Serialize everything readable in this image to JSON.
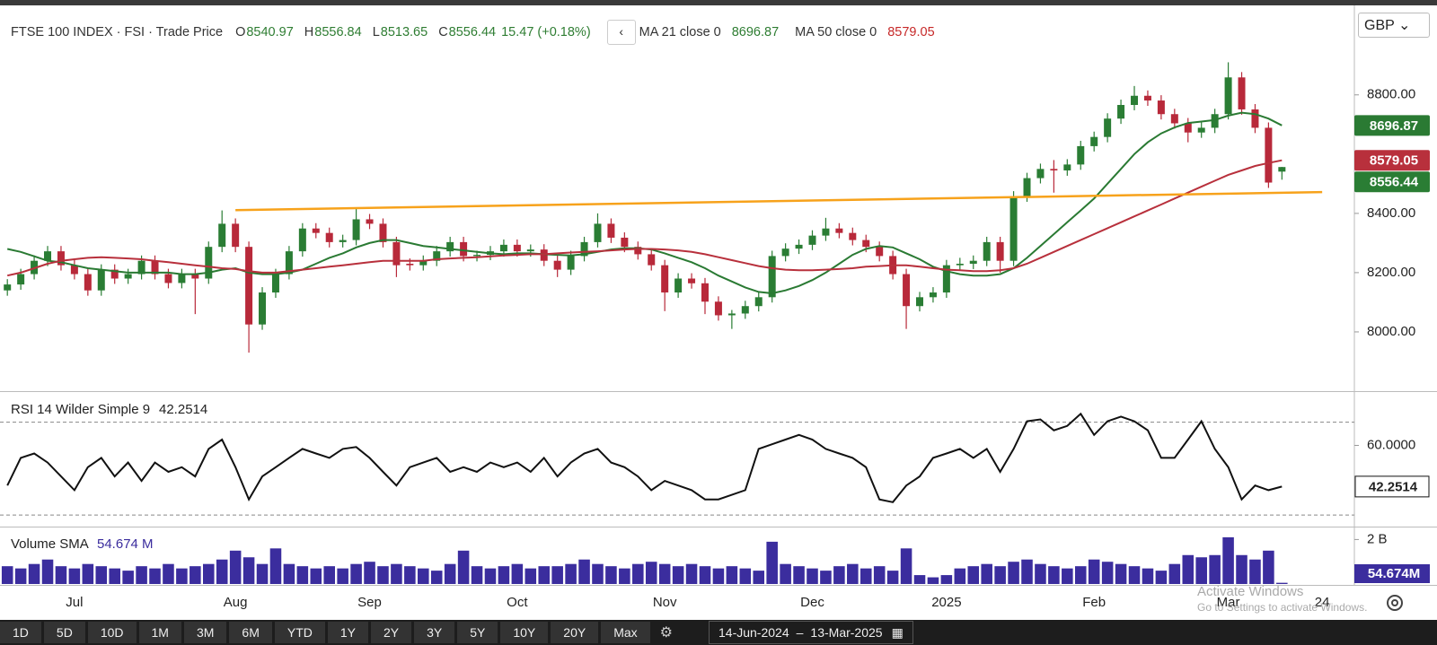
{
  "currency": "GBP",
  "toolbar": {
    "ranges": [
      "1D",
      "5D",
      "10D",
      "1M",
      "3M",
      "6M",
      "YTD",
      "1Y",
      "2Y",
      "3Y",
      "5Y",
      "10Y",
      "20Y",
      "Max"
    ],
    "from": "14-Jun-2024",
    "to": "13-Mar-2025"
  },
  "watermark": {
    "title": "Activate Windows",
    "text": "Go to Settings to activate Windows."
  },
  "chart_data": [
    {
      "type": "candlestick",
      "title": "FTSE 100 INDEX · FSI",
      "subtitle": "· Trade Price",
      "ohlc_labels": [
        "O",
        "H",
        "L",
        "C"
      ],
      "change": "15.47 (+0.18%)",
      "up_color": "#2a7d34",
      "down_color": "#b8293a",
      "ohlc": [
        [
          8140,
          8178,
          8122,
          8160
        ],
        [
          8160,
          8213,
          8142,
          8195
        ],
        [
          8195,
          8258,
          8177,
          8240
        ],
        [
          8240,
          8290,
          8222,
          8272
        ],
        [
          8272,
          8290,
          8207,
          8225
        ],
        [
          8225,
          8243,
          8177,
          8195
        ],
        [
          8195,
          8213,
          8122,
          8140
        ],
        [
          8140,
          8228,
          8122,
          8210
        ],
        [
          8210,
          8228,
          8162,
          8180
        ],
        [
          8180,
          8213,
          8162,
          8195
        ],
        [
          8195,
          8258,
          8177,
          8240
        ],
        [
          8240,
          8258,
          8177,
          8195
        ],
        [
          8195,
          8213,
          8147,
          8165
        ],
        [
          8165,
          8213,
          8147,
          8195
        ],
        [
          8195,
          8213,
          8060,
          8180
        ],
        [
          8180,
          8305,
          8162,
          8287
        ],
        [
          8287,
          8410,
          8269,
          8365
        ],
        [
          8365,
          8383,
          8269,
          8287
        ],
        [
          8287,
          8305,
          7930,
          8025
        ],
        [
          8025,
          8151,
          8007,
          8133
        ],
        [
          8133,
          8213,
          8115,
          8195
        ],
        [
          8195,
          8290,
          8177,
          8272
        ],
        [
          8272,
          8367,
          8254,
          8349
        ],
        [
          8349,
          8367,
          8316,
          8334
        ],
        [
          8334,
          8352,
          8285,
          8303
        ],
        [
          8303,
          8328,
          8285,
          8310
        ],
        [
          8310,
          8415,
          8292,
          8380
        ],
        [
          8380,
          8398,
          8347,
          8365
        ],
        [
          8365,
          8383,
          8285,
          8303
        ],
        [
          8303,
          8321,
          8185,
          8225
        ],
        [
          8230,
          8248,
          8207,
          8225
        ],
        [
          8225,
          8258,
          8207,
          8240
        ],
        [
          8240,
          8290,
          8222,
          8272
        ],
        [
          8272,
          8321,
          8254,
          8303
        ],
        [
          8303,
          8321,
          8238,
          8256
        ],
        [
          8256,
          8274,
          8238,
          8260
        ],
        [
          8260,
          8290,
          8242,
          8272
        ],
        [
          8272,
          8312,
          8254,
          8294
        ],
        [
          8294,
          8312,
          8254,
          8272
        ],
        [
          8272,
          8295,
          8254,
          8278
        ],
        [
          8278,
          8296,
          8222,
          8240
        ],
        [
          8240,
          8258,
          8185,
          8210
        ],
        [
          8210,
          8274,
          8192,
          8256
        ],
        [
          8256,
          8321,
          8238,
          8303
        ],
        [
          8303,
          8400,
          8285,
          8365
        ],
        [
          8365,
          8383,
          8300,
          8318
        ],
        [
          8318,
          8336,
          8269,
          8287
        ],
        [
          8287,
          8305,
          8244,
          8262
        ],
        [
          8262,
          8280,
          8207,
          8225
        ],
        [
          8225,
          8243,
          8070,
          8133
        ],
        [
          8133,
          8198,
          8115,
          8180
        ],
        [
          8180,
          8198,
          8146,
          8164
        ],
        [
          8164,
          8182,
          8060,
          8102
        ],
        [
          8102,
          8120,
          8038,
          8056
        ],
        [
          8056,
          8074,
          8010,
          8062
        ],
        [
          8062,
          8105,
          8044,
          8087
        ],
        [
          8087,
          8135,
          8069,
          8117
        ],
        [
          8117,
          8274,
          8099,
          8256
        ],
        [
          8256,
          8299,
          8238,
          8281
        ],
        [
          8281,
          8312,
          8263,
          8294
        ],
        [
          8294,
          8343,
          8276,
          8325
        ],
        [
          8325,
          8385,
          8307,
          8349
        ],
        [
          8349,
          8367,
          8316,
          8334
        ],
        [
          8334,
          8352,
          8292,
          8310
        ],
        [
          8310,
          8328,
          8269,
          8287
        ],
        [
          8287,
          8305,
          8238,
          8256
        ],
        [
          8256,
          8274,
          8177,
          8195
        ],
        [
          8195,
          8213,
          8010,
          8087
        ],
        [
          8087,
          8135,
          8069,
          8117
        ],
        [
          8117,
          8151,
          8099,
          8133
        ],
        [
          8133,
          8243,
          8115,
          8225
        ],
        [
          8225,
          8250,
          8207,
          8230
        ],
        [
          8230,
          8258,
          8212,
          8240
        ],
        [
          8240,
          8321,
          8222,
          8303
        ],
        [
          8303,
          8321,
          8200,
          8240
        ],
        [
          8240,
          8475,
          8222,
          8457
        ],
        [
          8457,
          8537,
          8439,
          8519
        ],
        [
          8519,
          8568,
          8501,
          8550
        ],
        [
          8550,
          8580,
          8470,
          8545
        ],
        [
          8545,
          8583,
          8527,
          8565
        ],
        [
          8565,
          8645,
          8547,
          8627
        ],
        [
          8627,
          8676,
          8609,
          8658
        ],
        [
          8658,
          8738,
          8640,
          8720
        ],
        [
          8720,
          8784,
          8702,
          8766
        ],
        [
          8766,
          8830,
          8748,
          8797
        ],
        [
          8797,
          8815,
          8763,
          8781
        ],
        [
          8781,
          8799,
          8717,
          8735
        ],
        [
          8735,
          8753,
          8686,
          8704
        ],
        [
          8704,
          8722,
          8640,
          8673
        ],
        [
          8673,
          8707,
          8655,
          8689
        ],
        [
          8689,
          8753,
          8671,
          8735
        ],
        [
          8735,
          8910,
          8717,
          8859
        ],
        [
          8859,
          8877,
          8733,
          8751
        ],
        [
          8751,
          8769,
          8671,
          8689
        ],
        [
          8689,
          8707,
          8486,
          8504
        ],
        [
          8540.97,
          8556.84,
          8513.65,
          8556.44
        ],
        null,
        null,
        null,
        null,
        null
      ],
      "series": [
        {
          "name": "MA 21 close 0",
          "color": "#2a7a33",
          "values": [
            8280,
            8270,
            8255,
            8240,
            8235,
            8225,
            8215,
            8210,
            8205,
            8200,
            8200,
            8200,
            8200,
            8195,
            8195,
            8200,
            8210,
            8215,
            8200,
            8195,
            8195,
            8200,
            8210,
            8230,
            8250,
            8265,
            8285,
            8300,
            8310,
            8310,
            8300,
            8290,
            8285,
            8280,
            8275,
            8270,
            8265,
            8262,
            8265,
            8265,
            8262,
            8260,
            8258,
            8262,
            8270,
            8278,
            8282,
            8282,
            8278,
            8265,
            8250,
            8235,
            8215,
            8190,
            8170,
            8150,
            8135,
            8130,
            8140,
            8155,
            8175,
            8200,
            8230,
            8260,
            8280,
            8290,
            8285,
            8265,
            8245,
            8220,
            8205,
            8195,
            8190,
            8190,
            8195,
            8215,
            8250,
            8290,
            8330,
            8370,
            8410,
            8450,
            8500,
            8550,
            8600,
            8640,
            8670,
            8690,
            8705,
            8710,
            8715,
            8730,
            8740,
            8735,
            8720,
            8696.87,
            null,
            null,
            null,
            null,
            null
          ]
        },
        {
          "name": "MA 50 close 0",
          "color": "#b8303c",
          "values": [
            8190,
            8200,
            8215,
            8230,
            8240,
            8245,
            8250,
            8252,
            8250,
            8248,
            8245,
            8240,
            8235,
            8230,
            8225,
            8220,
            8215,
            8212,
            8205,
            8200,
            8200,
            8205,
            8210,
            8215,
            8220,
            8225,
            8230,
            8235,
            8240,
            8240,
            8240,
            8240,
            8245,
            8248,
            8250,
            8252,
            8255,
            8258,
            8260,
            8262,
            8262,
            8265,
            8268,
            8270,
            8272,
            8275,
            8278,
            8280,
            8280,
            8278,
            8275,
            8270,
            8262,
            8252,
            8242,
            8232,
            8222,
            8215,
            8210,
            8208,
            8208,
            8210,
            8212,
            8215,
            8220,
            8222,
            8225,
            8225,
            8220,
            8215,
            8210,
            8208,
            8205,
            8205,
            8208,
            8215,
            8230,
            8250,
            8270,
            8290,
            8310,
            8330,
            8350,
            8370,
            8390,
            8410,
            8430,
            8450,
            8470,
            8490,
            8510,
            8530,
            8545,
            8560,
            8570,
            8579.05,
            null,
            null,
            null,
            null,
            null
          ]
        }
      ],
      "trendline": {
        "color": "#f7a21b",
        "x": [
          17,
          98
        ],
        "values": [
          8411,
          8472
        ]
      },
      "ylim": [
        7800,
        9090
      ],
      "yticks": [
        {
          "value": 8000,
          "label": "8000.00"
        },
        {
          "value": 8200,
          "label": "8200.00"
        },
        {
          "value": 8400,
          "label": "8400.00"
        },
        {
          "value": 8800,
          "label": "8800.00"
        }
      ]
    },
    {
      "type": "line",
      "title": "RSI 14 Wilder Simple 9",
      "series": [
        {
          "name": "RSI",
          "color": "#111111",
          "values": [
            42.7,
            54.6,
            56.5,
            52.6,
            46.6,
            40.7,
            50.6,
            54.6,
            46.6,
            52.6,
            44.7,
            52.6,
            48.6,
            50.6,
            46.6,
            58.5,
            62.5,
            50.6,
            36.7,
            46.6,
            50.6,
            54.6,
            58.5,
            56.5,
            54.6,
            58.5,
            59.3,
            54.6,
            48.6,
            42.7,
            50.6,
            52.6,
            54.6,
            48.6,
            50.6,
            48.6,
            52.6,
            50.6,
            52.6,
            48.6,
            54.6,
            46.6,
            52.6,
            56.5,
            58.5,
            52.6,
            50.6,
            46.6,
            40.7,
            44.7,
            42.7,
            40.7,
            36.7,
            36.7,
            38.7,
            40.7,
            58.5,
            60.5,
            62.5,
            64.5,
            62.5,
            58.5,
            56.5,
            54.6,
            50.6,
            36.7,
            35.5,
            42.7,
            46.6,
            54.6,
            56.5,
            58.5,
            54.6,
            58.5,
            48.6,
            58.5,
            70.4,
            71.2,
            66.5,
            68.4,
            73.6,
            64.5,
            70.4,
            72.4,
            70.4,
            66.5,
            54.6,
            54.6,
            62.5,
            70.4,
            58.5,
            50.6,
            36.7,
            42.7,
            40.7,
            42.2514,
            null,
            null,
            null,
            null,
            null
          ]
        }
      ],
      "bands": [
        30,
        70
      ],
      "ylim": [
        25,
        83
      ],
      "yticks": [
        {
          "value": 60,
          "label": "60.0000"
        }
      ]
    },
    {
      "type": "bar",
      "title": "Volume SMA",
      "sma_label": "54.674 M",
      "badge": "54.674M",
      "color": "#3b2d9e",
      "categories": [
        null,
        null,
        null,
        null,
        null,
        "Jul",
        null,
        null,
        null,
        null,
        null,
        null,
        null,
        null,
        null,
        null,
        null,
        "Aug",
        null,
        null,
        null,
        null,
        null,
        null,
        null,
        null,
        null,
        "Sep",
        null,
        null,
        null,
        null,
        null,
        null,
        null,
        null,
        null,
        null,
        "Oct",
        null,
        null,
        null,
        null,
        null,
        null,
        null,
        null,
        null,
        null,
        "Nov",
        null,
        null,
        null,
        null,
        null,
        null,
        null,
        null,
        null,
        null,
        "Dec",
        null,
        null,
        null,
        null,
        null,
        null,
        null,
        null,
        null,
        "2025",
        null,
        null,
        null,
        null,
        null,
        null,
        null,
        null,
        null,
        null,
        "Feb",
        null,
        null,
        null,
        null,
        null,
        null,
        null,
        null,
        null,
        "Mar",
        null,
        null,
        null,
        null,
        null,
        null,
        "24",
        null,
        null
      ],
      "values": [
        0.8,
        0.7,
        0.9,
        1.1,
        0.8,
        0.7,
        0.9,
        0.8,
        0.7,
        0.6,
        0.8,
        0.7,
        0.9,
        0.7,
        0.8,
        0.9,
        1.1,
        1.5,
        1.2,
        0.9,
        1.6,
        0.9,
        0.8,
        0.7,
        0.8,
        0.7,
        0.9,
        1.0,
        0.8,
        0.9,
        0.8,
        0.7,
        0.6,
        0.9,
        1.5,
        0.8,
        0.7,
        0.8,
        0.9,
        0.7,
        0.8,
        0.8,
        0.9,
        1.1,
        0.9,
        0.8,
        0.7,
        0.9,
        1.0,
        0.9,
        0.8,
        0.9,
        0.8,
        0.7,
        0.8,
        0.7,
        0.6,
        1.9,
        0.9,
        0.8,
        0.7,
        0.6,
        0.8,
        0.9,
        0.7,
        0.8,
        0.6,
        1.6,
        0.4,
        0.3,
        0.4,
        0.7,
        0.8,
        0.9,
        0.8,
        1.0,
        1.1,
        0.9,
        0.8,
        0.7,
        0.8,
        1.1,
        1.0,
        0.9,
        0.8,
        0.7,
        0.6,
        0.9,
        1.3,
        1.2,
        1.3,
        2.1,
        1.3,
        1.1,
        1.5,
        0.054674,
        null,
        null,
        null,
        null,
        null
      ],
      "ylim": [
        0,
        2.5
      ],
      "yticks": [
        {
          "value": 2,
          "label": "2 B"
        }
      ]
    }
  ]
}
